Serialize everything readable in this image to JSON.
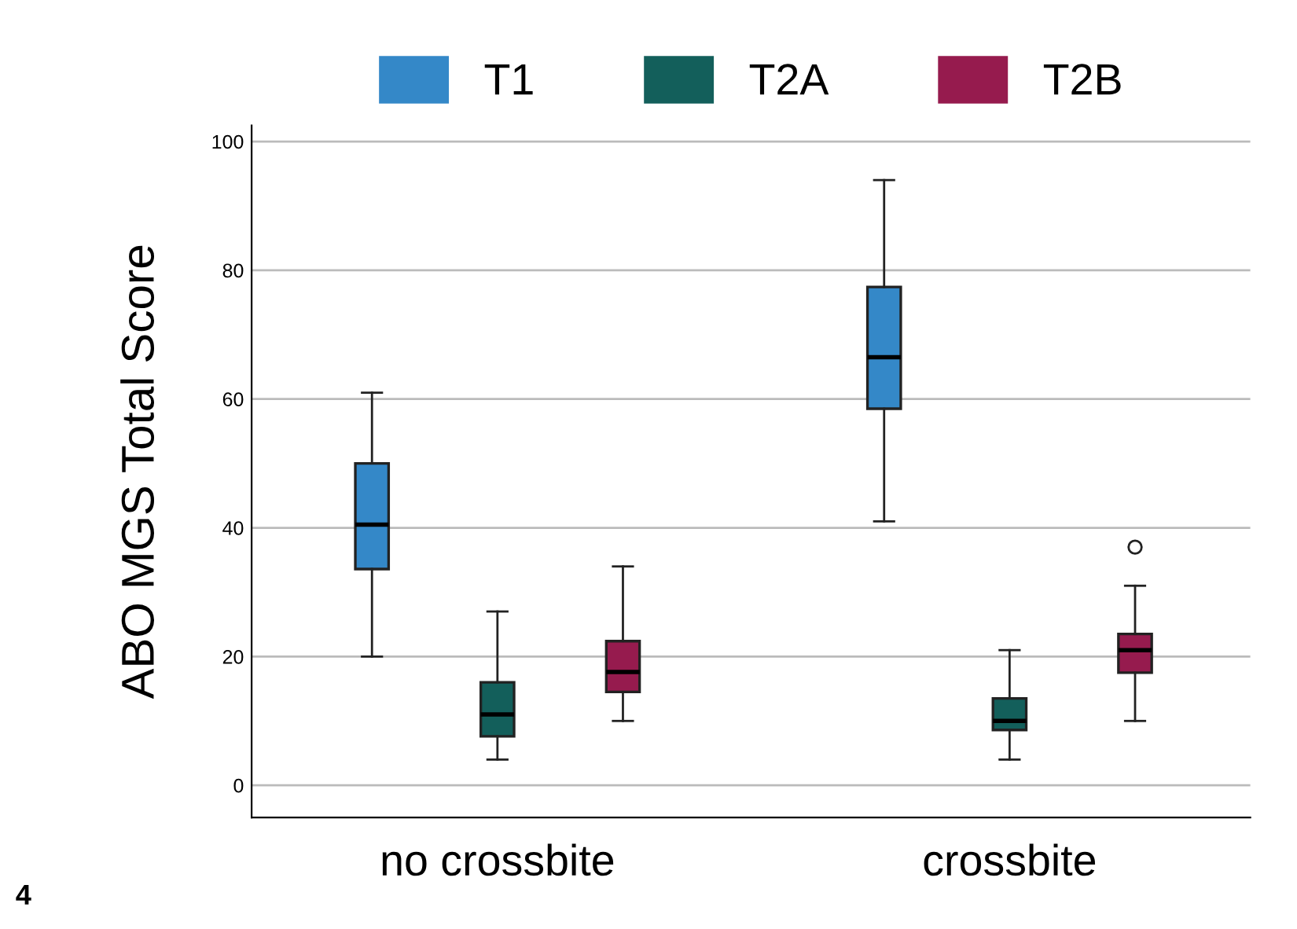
{
  "chart_data": {
    "type": "box",
    "ylabel": "ABO MGS Total Score",
    "categories": [
      "no crossbite",
      "crossbite"
    ],
    "series": [
      {
        "name": "T1",
        "color": "#3488c8",
        "boxes": [
          {
            "low": 20,
            "q1": 33.6,
            "median": 40.5,
            "q3": 50,
            "high": 61
          },
          {
            "low": 41,
            "q1": 58.5,
            "median": 66.5,
            "q3": 77.4,
            "high": 94
          }
        ]
      },
      {
        "name": "T2A",
        "color": "#135f5b",
        "boxes": [
          {
            "low": 4,
            "q1": 7.6,
            "median": 11,
            "q3": 16,
            "high": 27
          },
          {
            "low": 4,
            "q1": 8.6,
            "median": 10,
            "q3": 13.5,
            "high": 21
          }
        ]
      },
      {
        "name": "T2B",
        "color": "#961b4e",
        "boxes": [
          {
            "low": 10,
            "q1": 14.5,
            "median": 17.6,
            "q3": 22.4,
            "high": 34
          },
          {
            "low": 10,
            "q1": 17.5,
            "median": 21,
            "q3": 23.5,
            "high": 31,
            "outliers": [
              37
            ]
          }
        ]
      }
    ],
    "ylim": [
      -5,
      102.5
    ],
    "yticks": [
      0,
      20,
      40,
      60,
      80,
      100
    ],
    "grid": "y",
    "legend": "top",
    "annotations": [
      "4"
    ]
  }
}
